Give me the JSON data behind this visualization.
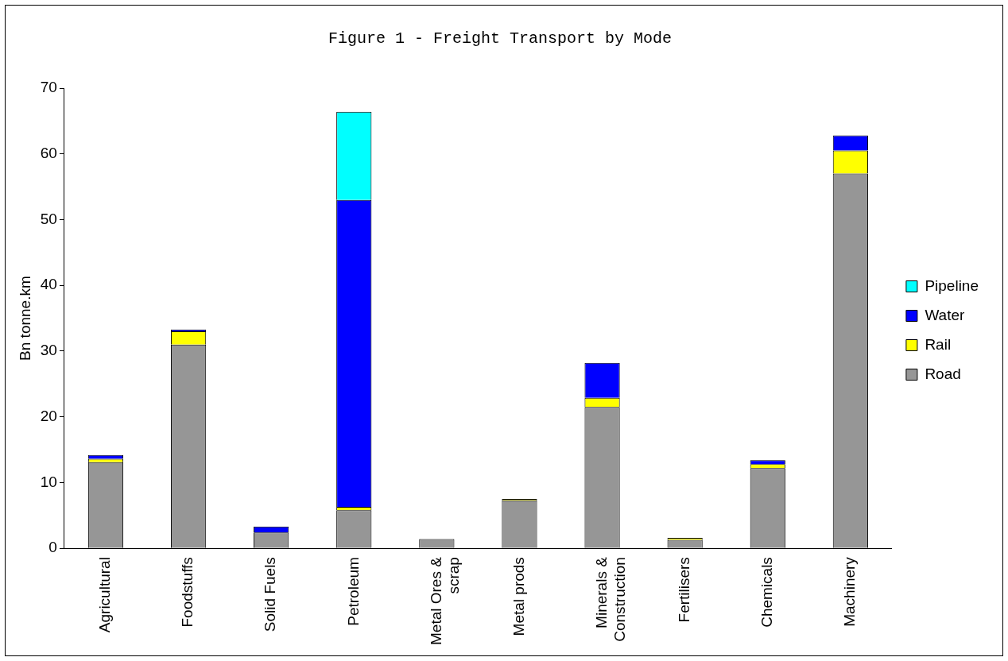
{
  "chart_data": {
    "type": "bar",
    "title": "Figure 1 - Freight Transport by Mode",
    "ylabel": "Bn tonne.km",
    "categories": [
      "Agricultural",
      "Foodstuffs",
      "Solid Fuels",
      "Petroleum",
      "Metal Ores & scrap",
      "Metal prods",
      "Minerals & Construction",
      "Fertilisers",
      "Chemicals",
      "Machinery"
    ],
    "stacked": true,
    "series": [
      {
        "name": "Road",
        "color": "#969696",
        "values": [
          13.1,
          31.0,
          2.4,
          5.8,
          1.4,
          7.3,
          21.5,
          1.3,
          12.2,
          57.0
        ]
      },
      {
        "name": "Rail",
        "color": "#ffff00",
        "values": [
          0.5,
          2.0,
          0,
          0.5,
          0,
          0.2,
          1.4,
          0.3,
          0.6,
          3.5
        ]
      },
      {
        "name": "Water",
        "color": "#0000ff",
        "values": [
          0.6,
          0.3,
          0.9,
          46.7,
          0,
          0,
          5.3,
          0,
          0.6,
          2.3
        ]
      },
      {
        "name": "Pipeline",
        "color": "#00ffff",
        "values": [
          0,
          0,
          0,
          13.4,
          0,
          0,
          0,
          0,
          0,
          0
        ]
      }
    ],
    "ylim": [
      0,
      70
    ],
    "yticks": [
      0,
      10,
      20,
      30,
      40,
      50,
      60,
      70
    ],
    "grid": false,
    "legend": "right"
  }
}
